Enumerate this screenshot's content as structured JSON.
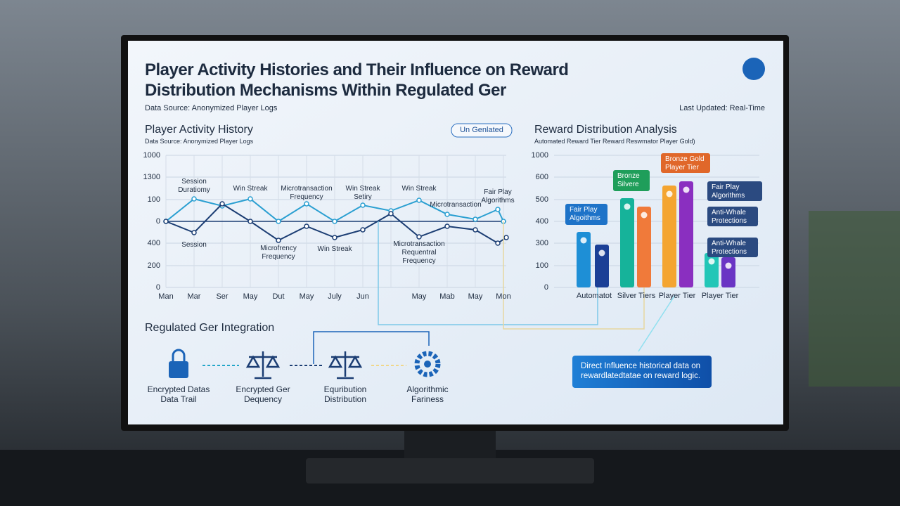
{
  "header": {
    "title": "Player Activity Histories and Their Influence on Reward Distribution Mechanisms Within Regulated Ger",
    "source": "Data Source: Anonymized Player Logs",
    "updated": "Last Updated: Real-Time"
  },
  "activity": {
    "title": "Player Activity History",
    "subtitle": "Data Source: Anonymized Player Logs",
    "badge": "Un Genlated",
    "y_labels": [
      "1000",
      "1300",
      "100",
      "0",
      "400",
      "200",
      "0"
    ],
    "x_labels": [
      "Man",
      "Mar",
      "Ser",
      "May",
      "Dut",
      "May",
      "July",
      "Jun",
      "May",
      "Mab",
      "May",
      "Mon"
    ],
    "annotations": [
      "Session Duratiomy",
      "Win Streak",
      "Microtransaction Frequency",
      "Win Streak Setiry",
      "Win Streak",
      "Fair Play Algorithms",
      "Microtransaction",
      "Session",
      "Microfrency Frequency",
      "Win Streak",
      "Microtransaction Requentral Frequency"
    ]
  },
  "reward": {
    "title": "Reward Distribution Analysis",
    "subtitle": "Automated Reward Tier Reward Reswmator Player Gold)",
    "y_labels": [
      "1000",
      "600",
      "500",
      "400",
      "300",
      "100",
      "0"
    ],
    "x_labels": [
      "Automatot",
      "Silver Tiers",
      "Player Tier",
      "Player Tier"
    ],
    "callouts": [
      "Fair Play Algoithms",
      "Bronze Silvere",
      "Bronze Gold Player Tier",
      "Fair Play Algorithms",
      "Anti-Whale Protections",
      "Anti-Whale Protections"
    ]
  },
  "integration": {
    "title": "Regulated Ger Integration",
    "nodes": [
      "Encrypted Datas Data Trail",
      "Encrypted Ger Dequency",
      "Equribution Distribution",
      "Algorithmic Fariness"
    ],
    "callout": "Direct Influence historical data on rewardlatedtatae on reward logic."
  }
}
